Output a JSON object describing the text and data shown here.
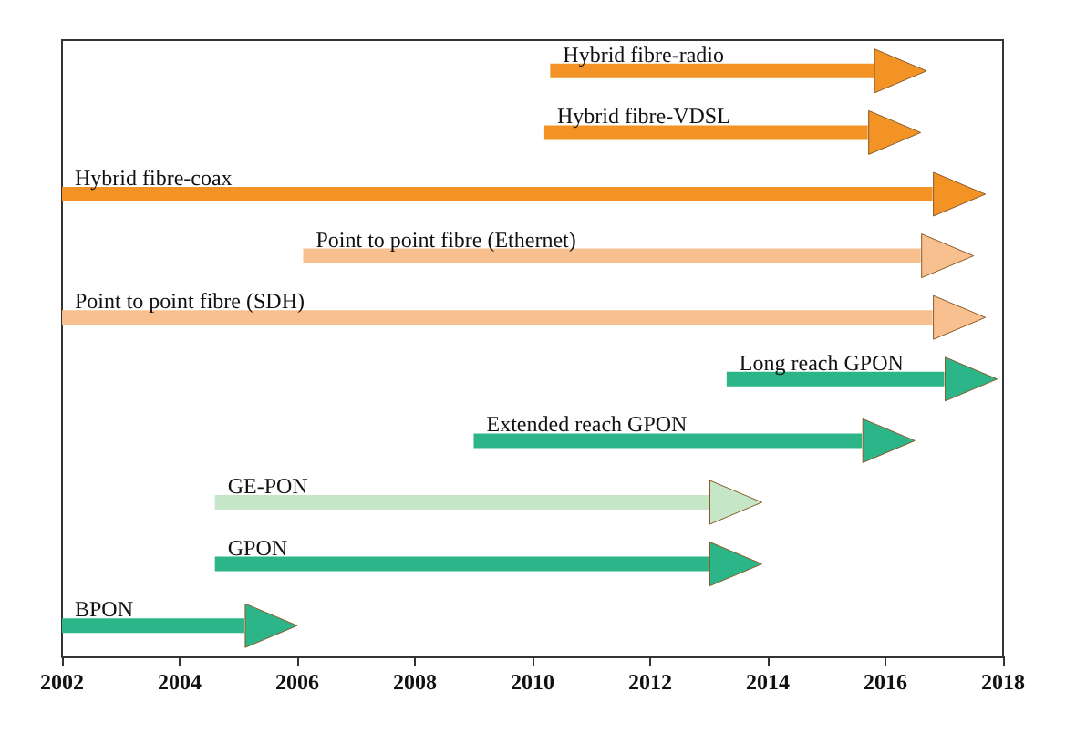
{
  "chart_data": {
    "type": "bar",
    "orientation": "horizontal",
    "categories": [
      "Hybrid fibre-radio",
      "Hybrid fibre-VDSL",
      "Hybrid fibre-coax",
      "Point to point fibre (Ethernet)",
      "Point to point fibre (SDH)",
      "Long reach GPON",
      "Extended reach GPON",
      "GE-PON",
      "GPON",
      "BPON"
    ],
    "base": [
      2010.3,
      2010.2,
      2002,
      2006.1,
      2002,
      2013.3,
      2009.0,
      2004.6,
      2004.6,
      2002
    ],
    "values": [
      5.5,
      5.5,
      14.8,
      10.5,
      14.8,
      3.7,
      6.6,
      8.4,
      8.4,
      3.1
    ],
    "colors": [
      "#f39325",
      "#f39325",
      "#f39325",
      "#f9c08f",
      "#f9c08f",
      "#2bb589",
      "#2bb589",
      "#c6e6c8",
      "#2bb589",
      "#2bb589"
    ],
    "xlim": [
      2002,
      2018
    ],
    "xticks": [
      2002,
      2004,
      2006,
      2008,
      2010,
      2012,
      2014,
      2016,
      2018
    ],
    "tick_labels": "x",
    "grid": false
  }
}
